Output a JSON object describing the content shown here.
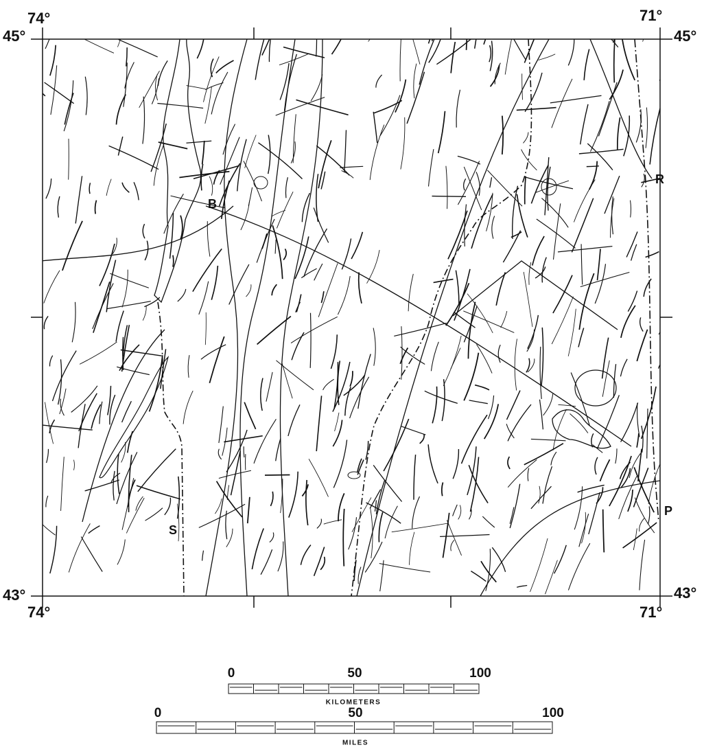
{
  "corners": {
    "top_left": {
      "lon": "74°",
      "lat": "45°"
    },
    "top_right": {
      "lon": "71°",
      "lat": "45°"
    },
    "bottom_left": {
      "lat": "43°",
      "lon": "74°"
    },
    "bottom_right": {
      "lat": "43°",
      "lon": "71°"
    }
  },
  "places": [
    "B",
    "R",
    "P",
    "S"
  ],
  "km_scale": {
    "ticks": [
      "0",
      "50",
      "100"
    ],
    "unit": "KILOMETERS"
  },
  "mi_scale": {
    "ticks": [
      "0",
      "50",
      "100"
    ],
    "unit": "MILES"
  }
}
